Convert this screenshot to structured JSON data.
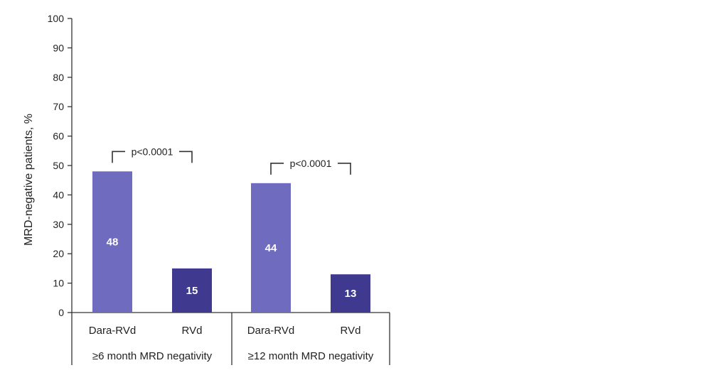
{
  "chart_data": {
    "type": "bar",
    "ylabel": "MRD-negative patients, %",
    "ylim": [
      0,
      100
    ],
    "yticks": [
      0,
      10,
      20,
      30,
      40,
      50,
      60,
      70,
      80,
      90,
      100
    ],
    "grid": false,
    "groups": [
      {
        "label": "≥6 month MRD negativity",
        "significance": "p<0.0001",
        "bars": [
          {
            "category": "Dara-RVd",
            "value": 48,
            "label": "48",
            "color": "#6f6cbf"
          },
          {
            "category": "RVd",
            "value": 15,
            "label": "15",
            "color": "#3f3a8f"
          }
        ]
      },
      {
        "label": "≥12 month MRD negativity",
        "significance": "p<0.0001",
        "bars": [
          {
            "category": "Dara-RVd",
            "value": 44,
            "label": "44",
            "color": "#6f6cbf"
          },
          {
            "category": "RVd",
            "value": 13,
            "label": "13",
            "color": "#3f3a8f"
          }
        ]
      }
    ]
  }
}
